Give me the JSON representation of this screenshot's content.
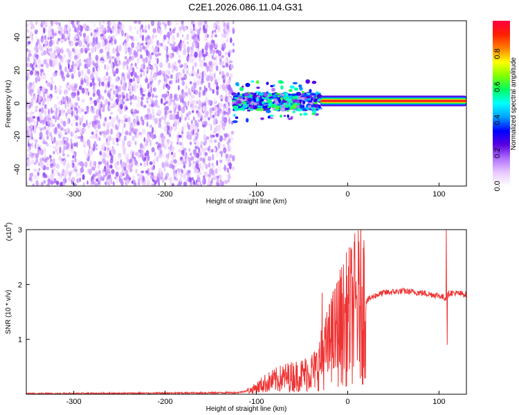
{
  "title": "C2E1.2026.086.11.04.G31",
  "chart_data": [
    {
      "type": "heatmap",
      "xlabel": "Height of straight line (km)",
      "ylabel": "Frequency (Hz)",
      "xlim": [
        -352,
        130
      ],
      "ylim": [
        -50,
        50
      ],
      "x_ticks": [
        -300,
        -200,
        -100,
        0,
        100
      ],
      "y_ticks": [
        -40,
        -20,
        0,
        20,
        40
      ],
      "colorbar": {
        "label": "Normalized spectral amplitude",
        "range": [
          0,
          1
        ],
        "ticks": [
          0.0,
          0.2,
          0.4,
          0.6,
          0.8
        ],
        "colors": [
          "#ffffff",
          "#e8c8ff",
          "#b070ff",
          "#5a00e0",
          "#0000ff",
          "#00a0ff",
          "#00ffff",
          "#00ff60",
          "#80ff00",
          "#ffff00",
          "#ff8000",
          "#ff2000",
          "#ff0040"
        ]
      },
      "regions": [
        {
          "name": "noise",
          "x_range": [
            -352,
            -125
          ],
          "freq_range": [
            -50,
            50
          ],
          "amplitude": 0.1
        },
        {
          "name": "transition",
          "x_range": [
            -125,
            -30
          ],
          "freq_center": 1,
          "freq_halfwidth": 5,
          "amplitude": 0.4
        },
        {
          "name": "signal",
          "x_range": [
            -30,
            130
          ],
          "freq_center": 1.5,
          "freq_halfwidth": 2,
          "amplitude": 0.95
        }
      ]
    },
    {
      "type": "line",
      "xlabel": "Height of straight line (km)",
      "ylabel": "SNR (10 * v/v)",
      "y_scale_label": "(x10",
      "y_scale_exp": "4",
      "y_scale_close": ")",
      "xlim": [
        -352,
        130
      ],
      "ylim": [
        0,
        3
      ],
      "x_ticks": [
        -300,
        -200,
        -100,
        0,
        100
      ],
      "y_ticks": [
        1,
        2,
        3
      ],
      "series": [
        {
          "color": "#ee3333",
          "points": [
            [
              -352,
              0.01
            ],
            [
              -200,
              0.02
            ],
            [
              -120,
              0.03
            ],
            [
              -105,
              0.08
            ],
            [
              -90,
              0.2
            ],
            [
              -70,
              0.3
            ],
            [
              -50,
              0.35
            ],
            [
              -35,
              0.45
            ],
            [
              -30,
              0.6
            ],
            [
              -20,
              0.9
            ],
            [
              -10,
              1.2
            ],
            [
              0,
              1.4
            ],
            [
              10,
              1.6
            ],
            [
              20,
              1.7
            ],
            [
              30,
              1.8
            ],
            [
              40,
              1.85
            ],
            [
              60,
              1.88
            ],
            [
              80,
              1.85
            ],
            [
              100,
              1.8
            ],
            [
              107,
              1.75
            ],
            [
              112,
              1.85
            ],
            [
              130,
              1.82
            ]
          ],
          "spikes": [
            [
              -28,
              1.85
            ],
            [
              -18,
              1.75
            ],
            [
              12,
              2.0
            ],
            [
              108,
              3.0
            ],
            [
              109,
              0.9
            ]
          ]
        }
      ]
    }
  ]
}
